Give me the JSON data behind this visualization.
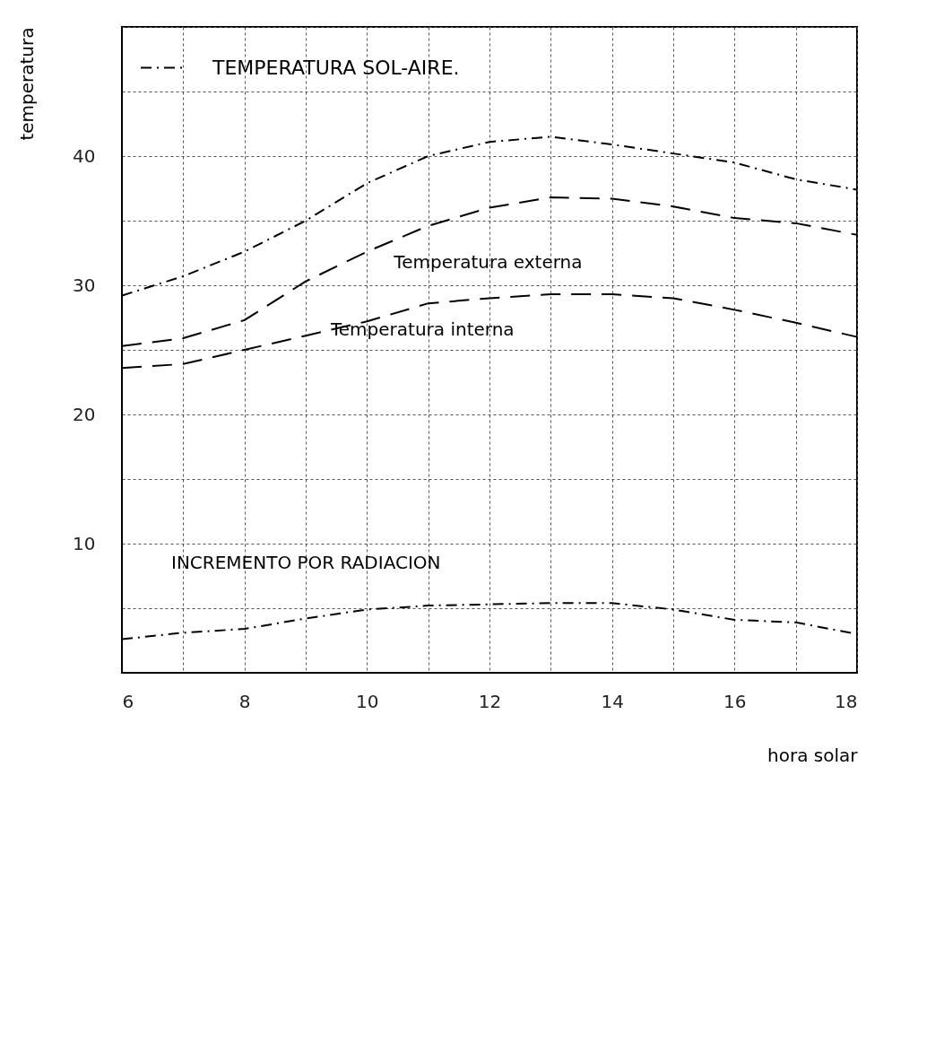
{
  "chart_data": {
    "type": "line",
    "xlabel": "hora solar",
    "ylabel": "temperatura",
    "x": [
      6,
      7,
      8,
      9,
      10,
      11,
      12,
      13,
      14,
      15,
      16,
      17,
      18
    ],
    "series": [
      {
        "name": "TEMPERATURA SOL-AIRE.",
        "color": "#000000",
        "line_style": "dotted",
        "values": [
          29.2,
          30.7,
          32.6,
          35,
          37.9,
          40,
          41.1,
          41.5,
          40.9,
          40.2,
          39.5,
          38.2,
          37.4
        ]
      },
      {
        "name": "Temperatura externa",
        "color": "#000000",
        "line_style": "dashed",
        "values": [
          25.3,
          25.9,
          27.3,
          30.3,
          32.6,
          34.6,
          36,
          36.8,
          36.7,
          36.1,
          35.2,
          34.8,
          33.9
        ]
      },
      {
        "name": "Temperatura interna",
        "color": "#000000",
        "line_style": "dashed",
        "values": [
          23.6,
          23.9,
          25,
          26.1,
          27.2,
          28.6,
          29,
          29.3,
          29.3,
          29,
          28.1,
          27.1,
          26
        ]
      },
      {
        "name": "INCREMENTO POR RADIACION",
        "color": "#000000",
        "line_style": "dotted",
        "values": [
          2.6,
          3.1,
          3.4,
          4.2,
          4.9,
          5.2,
          5.3,
          5.4,
          5.4,
          4.9,
          4.1,
          3.9,
          3
        ]
      }
    ],
    "xlim": [
      6,
      18
    ],
    "ylim": [
      0,
      50
    ],
    "xticks": [
      6,
      {
        "value": 7,
        "label": null
      },
      8,
      {
        "value": 9,
        "label": null
      },
      10,
      {
        "value": 11,
        "label": null
      },
      12,
      {
        "value": 13,
        "label": null
      },
      14,
      {
        "value": 15,
        "label": null
      },
      16,
      {
        "value": 17,
        "label": null
      },
      18
    ],
    "yticks": [
      {
        "value": 0,
        "label": null
      },
      {
        "value": 5,
        "label": null
      },
      10,
      {
        "value": 15,
        "label": null
      },
      20,
      {
        "value": 25,
        "label": null
      },
      30,
      {
        "value": 35,
        "label": null
      },
      40,
      {
        "value": 45,
        "label": null
      },
      {
        "value": 50,
        "label": null
      }
    ],
    "grid": true,
    "legend": "top left"
  }
}
